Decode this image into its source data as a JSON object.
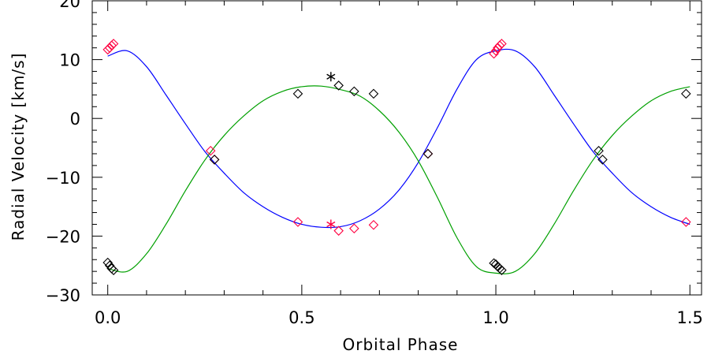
{
  "chart_data": {
    "type": "scatter",
    "title": "",
    "xlabel": "Orbital Phase",
    "ylabel": "Radial Velocity [km/s]",
    "xlim": [
      -0.04,
      1.53
    ],
    "ylim": [
      -30,
      20
    ],
    "x_ticks": [
      0.0,
      0.5,
      1.0,
      1.5
    ],
    "x_tick_labels": [
      "0.0",
      "0.5",
      "1.0",
      "1.5"
    ],
    "y_ticks": [
      -30,
      -20,
      -10,
      0,
      10,
      20
    ],
    "y_tick_labels": [
      "−30",
      "−20",
      "−10",
      "0",
      "10",
      "20"
    ],
    "grid": false,
    "colors": {
      "blue_curve": "#0000ff",
      "green_curve": "#00a000",
      "red_points": "#ff0040",
      "black_points": "#000000"
    },
    "series": [
      {
        "marker": "diamond",
        "color": "#ff0040",
        "points": [
          [
            0.0,
            11.7
          ],
          [
            0.005,
            12.0
          ],
          [
            0.01,
            12.4
          ],
          [
            0.015,
            12.7
          ],
          [
            0.265,
            -5.5
          ],
          [
            0.275,
            -7.0
          ],
          [
            0.49,
            -17.6
          ],
          [
            0.595,
            -19.1
          ],
          [
            0.635,
            -18.7
          ],
          [
            0.685,
            -18.1
          ],
          [
            0.825,
            -6.0
          ],
          [
            0.995,
            11.0
          ],
          [
            1.0,
            11.5
          ],
          [
            1.005,
            12.0
          ],
          [
            1.01,
            12.4
          ],
          [
            1.015,
            12.7
          ],
          [
            1.49,
            -17.6
          ]
        ]
      },
      {
        "marker": "diamond",
        "color": "#000000",
        "points": [
          [
            0.0,
            -24.5
          ],
          [
            0.005,
            -25.0
          ],
          [
            0.01,
            -25.5
          ],
          [
            0.015,
            -25.8
          ],
          [
            0.275,
            -7.0
          ],
          [
            0.49,
            4.2
          ],
          [
            0.595,
            5.6
          ],
          [
            0.635,
            4.6
          ],
          [
            0.685,
            4.2
          ],
          [
            0.825,
            -6.0
          ],
          [
            0.995,
            -24.6
          ],
          [
            1.0,
            -24.8
          ],
          [
            1.005,
            -25.2
          ],
          [
            1.01,
            -25.5
          ],
          [
            1.015,
            -25.8
          ],
          [
            1.265,
            -5.5
          ],
          [
            1.275,
            -7.0
          ],
          [
            1.49,
            4.2
          ]
        ]
      },
      {
        "marker": "asterisk",
        "color": "#000000",
        "points": [
          [
            0.575,
            7.1
          ]
        ]
      },
      {
        "marker": "asterisk",
        "color": "#ff0040",
        "points": [
          [
            0.575,
            -18.0
          ]
        ]
      },
      {
        "type": "line",
        "color": "#0000ff",
        "x": [
          0.0,
          0.05,
          0.1,
          0.15,
          0.2,
          0.25,
          0.3,
          0.35,
          0.4,
          0.45,
          0.5,
          0.55,
          0.6,
          0.65,
          0.7,
          0.75,
          0.8,
          0.85,
          0.9,
          0.95,
          1.0,
          1.05,
          1.1,
          1.15,
          1.2,
          1.25,
          1.3,
          1.35,
          1.4,
          1.45,
          1.5
        ],
        "y": [
          10.6,
          11.5,
          8.8,
          4.0,
          -0.9,
          -5.6,
          -9.3,
          -12.6,
          -15.0,
          -16.8,
          -18.0,
          -18.5,
          -18.4,
          -17.4,
          -15.4,
          -12.2,
          -7.5,
          -1.5,
          5.0,
          10.0,
          11.5,
          11.5,
          8.8,
          4.0,
          -0.9,
          -5.6,
          -9.3,
          -12.6,
          -15.0,
          -16.8,
          -18.0
        ]
      },
      {
        "type": "line",
        "color": "#00a000",
        "x": [
          0.0,
          0.05,
          0.1,
          0.15,
          0.2,
          0.25,
          0.3,
          0.35,
          0.4,
          0.45,
          0.5,
          0.55,
          0.6,
          0.65,
          0.7,
          0.75,
          0.8,
          0.85,
          0.9,
          0.95,
          1.0,
          1.05,
          1.1,
          1.15,
          1.2,
          1.25,
          1.3,
          1.35,
          1.4,
          1.45,
          1.5
        ],
        "y": [
          -25.5,
          -26.0,
          -23.0,
          -18.0,
          -12.3,
          -7.1,
          -2.9,
          0.4,
          3.0,
          4.6,
          5.4,
          5.5,
          4.9,
          3.8,
          1.3,
          -2.3,
          -7.2,
          -13.5,
          -20.3,
          -25.2,
          -26.3,
          -26.0,
          -23.0,
          -18.0,
          -12.3,
          -7.1,
          -2.9,
          0.4,
          3.0,
          4.6,
          5.4
        ]
      }
    ]
  }
}
